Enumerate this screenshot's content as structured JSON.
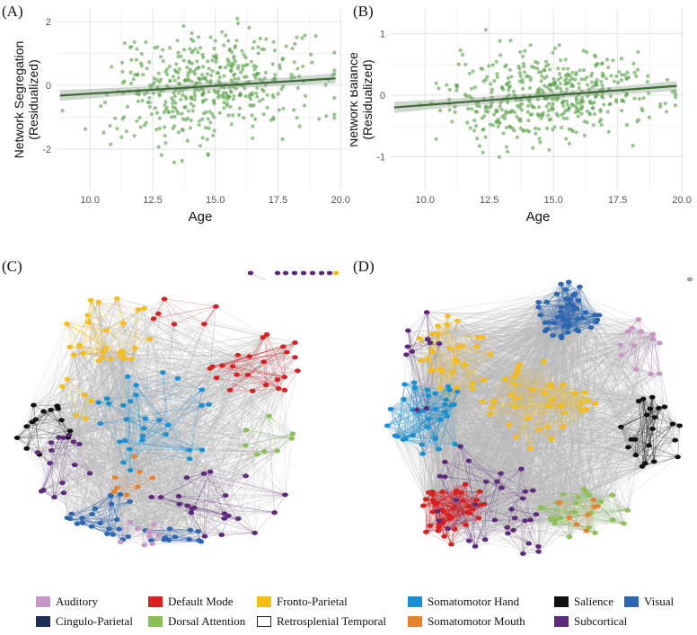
{
  "panels": {
    "a": "(A)",
    "b": "(B)",
    "c": "(C)",
    "d": "(D)"
  },
  "chart_data": [
    {
      "type": "scatter",
      "panel": "A",
      "xlabel": "Age",
      "ylabel_line1": "Network Segregation",
      "ylabel_line2": "(Residualized)",
      "xlim": [
        8.7,
        20.1
      ],
      "ylim": [
        -3.3,
        2.4
      ],
      "xticks": [
        10.0,
        12.5,
        15.0,
        17.5,
        20.0
      ],
      "xtick_labels": [
        "10.0",
        "12.5",
        "15.0",
        "17.5",
        "20.0"
      ],
      "yticks": [
        -2,
        0,
        2
      ],
      "ytick_labels": [
        "-2",
        "0",
        "2"
      ],
      "fit": {
        "x": [
          8.8,
          19.8
        ],
        "y": [
          -0.32,
          0.22
        ],
        "band": [
          0.17,
          0.06,
          0.16
        ]
      },
      "point_color": "#5aa14a",
      "line_color": "#3f6b3a",
      "n_points": 480,
      "mean_x": 14.8,
      "sd_x": 2.0,
      "resid_sd": 0.82,
      "seed": 7
    },
    {
      "type": "scatter",
      "panel": "B",
      "xlabel": "Age",
      "ylabel_line1": "Network Balance",
      "ylabel_line2": "(Residualized)",
      "xlim": [
        8.7,
        20.1
      ],
      "ylim": [
        -1.55,
        1.4
      ],
      "xticks": [
        10.0,
        12.5,
        15.0,
        17.5,
        20.0
      ],
      "xtick_labels": [
        "10.0",
        "12.5",
        "15.0",
        "17.5",
        "20.0"
      ],
      "yticks": [
        -1,
        0,
        1
      ],
      "ytick_labels": [
        "-1",
        "0",
        "1"
      ],
      "fit": {
        "x": [
          8.8,
          19.8
        ],
        "y": [
          -0.2,
          0.15
        ],
        "band": [
          0.09,
          0.03,
          0.08
        ]
      },
      "point_color": "#5aa14a",
      "line_color": "#3f6b3a",
      "n_points": 480,
      "mean_x": 14.8,
      "sd_x": 2.0,
      "resid_sd": 0.36,
      "seed": 19
    }
  ],
  "legend": [
    {
      "label": "Auditory",
      "color": "#c597c6"
    },
    {
      "label": "Default Mode",
      "color": "#d7201f"
    },
    {
      "label": "Fronto-Parietal",
      "color": "#f7bd14"
    },
    {
      "label": "Somatomotor Hand",
      "color": "#1b8fd1"
    },
    {
      "label": "Salience",
      "color": "#111111"
    },
    {
      "label": "Visual",
      "color": "#2e67b1"
    },
    {
      "label": "Cingulo-Parietal",
      "color": "#1d2d55"
    },
    {
      "label": "Dorsal Attention",
      "color": "#8cc056"
    },
    {
      "label": "Retrosplenial Temporal",
      "color": "#ffffff"
    },
    {
      "label": "Somatomotor Mouth",
      "color": "#e8822c"
    },
    {
      "label": "Subcortical",
      "color": "#5e2a7c"
    }
  ],
  "network_colors": {
    "auditory": "#c597c6",
    "default": "#d7201f",
    "fronto": "#f7bd14",
    "smhand": "#1b8fd1",
    "salience": "#111111",
    "visual": "#2e67b1",
    "cingulo": "#1d2d55",
    "dorsal": "#8cc056",
    "smmouth": "#e8822c",
    "subcortical": "#5e2a7c",
    "edge": "#b8b8b8"
  }
}
